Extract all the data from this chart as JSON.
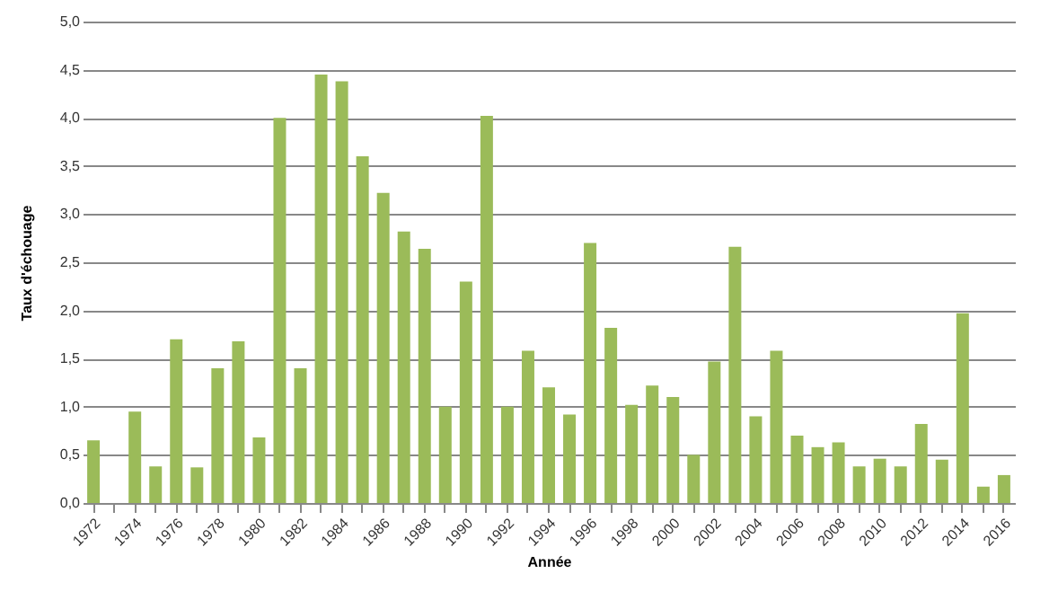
{
  "chart_data": {
    "type": "bar",
    "xlabel": "Année",
    "ylabel": "Taux d'échouage",
    "categories": [
      "1972",
      null,
      "1974",
      null,
      "1976",
      null,
      "1978",
      null,
      "1980",
      null,
      "1982",
      null,
      "1984",
      null,
      "1986",
      null,
      "1988",
      null,
      "1990",
      null,
      "1992",
      null,
      "1994",
      null,
      "1996",
      null,
      "1998",
      null,
      "2000",
      null,
      "2002",
      null,
      "2004",
      null,
      "2006",
      null,
      "2008",
      null,
      "2010",
      null,
      "2012",
      null,
      "2014",
      null,
      "2016"
    ],
    "values": [
      0.65,
      0,
      0.95,
      0.38,
      1.7,
      0.37,
      1.4,
      1.68,
      0.68,
      4.0,
      1.4,
      4.45,
      4.38,
      3.6,
      3.22,
      2.82,
      2.64,
      1.0,
      2.3,
      4.02,
      1.0,
      1.58,
      1.2,
      0.92,
      2.7,
      1.82,
      1.02,
      1.22,
      1.1,
      0.5,
      1.47,
      2.66,
      0.9,
      1.58,
      0.7,
      0.58,
      0.63,
      0.38,
      0.46,
      0.38,
      0.82,
      0.45,
      1.97,
      0.17,
      0.29
    ],
    "color": "#9bbb59",
    "ylim": [
      0,
      5
    ],
    "yticks": [
      {
        "value": 0,
        "label": "0,0"
      },
      {
        "value": 0.5,
        "label": "0,5"
      },
      {
        "value": 1,
        "label": "1,0"
      },
      {
        "value": 1.5,
        "label": "1,5"
      },
      {
        "value": 2,
        "label": "2,0"
      },
      {
        "value": 2.5,
        "label": "2,5"
      },
      {
        "value": 3,
        "label": "3,0"
      },
      {
        "value": 3.5,
        "label": "3,5"
      },
      {
        "value": 4,
        "label": "4,0"
      },
      {
        "value": 4.5,
        "label": "4,5"
      },
      {
        "value": 5,
        "label": "5,0"
      }
    ],
    "grid": "y"
  }
}
